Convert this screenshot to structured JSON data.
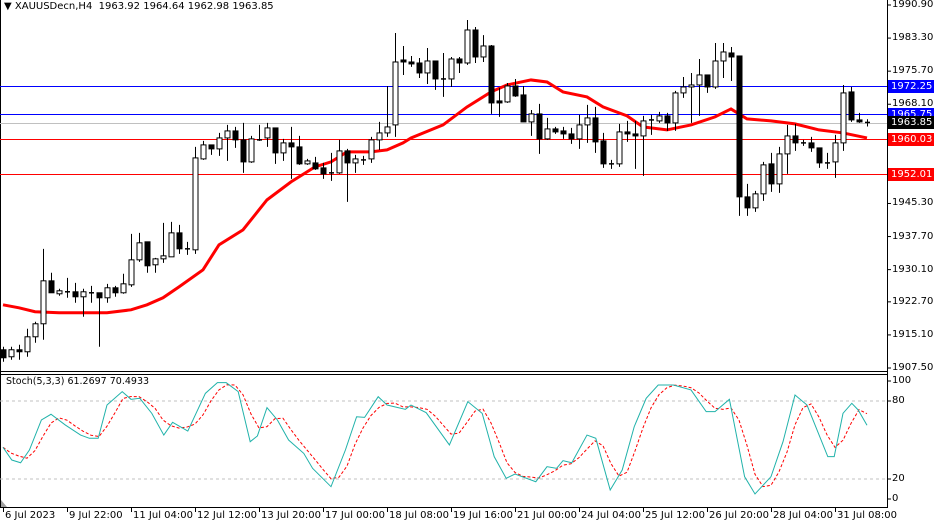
{
  "header": {
    "arrow_icon": "triangle-down-icon",
    "symbol": "XAUUSDecn,H4",
    "open": "1963.92",
    "high": "1964.64",
    "low": "1962.98",
    "close": "1963.85"
  },
  "price_axis": {
    "range": [
      1907.5,
      1990.9
    ],
    "ticks": [
      "1990.90",
      "1983.30",
      "1975.70",
      "1968.10",
      "1945.30",
      "1937.70",
      "1930.10",
      "1922.70",
      "1915.10",
      "1907.50"
    ]
  },
  "levels": [
    {
      "price": 1972.25,
      "label": "1972.25",
      "color": "#0000ff"
    },
    {
      "price": 1965.75,
      "label": "1965.75",
      "color": "#0000ff"
    },
    {
      "price": 1963.85,
      "label": "1963.85",
      "color": "#c0c0c0",
      "box": "#000000"
    },
    {
      "price": 1960.03,
      "label": "1960.03",
      "color": "#ff0000"
    },
    {
      "price": 1952.01,
      "label": "1952.01",
      "color": "#ff0000"
    }
  ],
  "chart_data": {
    "type": "candlestick",
    "candles_ohlc": [
      [
        1911.69,
        1912.38,
        1908.93,
        1909.85
      ],
      [
        1910.08,
        1912.38,
        1909.39,
        1911.69
      ],
      [
        1911.69,
        1912.84,
        1909.39,
        1911.23
      ],
      [
        1911.23,
        1916.51,
        1910.08,
        1914.67
      ],
      [
        1914.67,
        1918.12,
        1913.3,
        1917.66
      ],
      [
        1917.66,
        1934.88,
        1913.99,
        1927.53
      ],
      [
        1927.53,
        1929.37,
        1924.78,
        1924.78
      ],
      [
        1924.55,
        1925.7,
        1924.09,
        1925.24
      ],
      [
        1925.01,
        1928.22,
        1923.63,
        1925.01
      ],
      [
        1925.01,
        1927.07,
        1922.48,
        1923.86
      ],
      [
        1923.86,
        1925.7,
        1919.27,
        1925.01
      ],
      [
        1924.78,
        1926.38,
        1922.48,
        1924.78
      ],
      [
        1924.78,
        1924.78,
        1912.38,
        1923.63
      ],
      [
        1923.63,
        1926.84,
        1922.48,
        1925.93
      ],
      [
        1925.93,
        1926.38,
        1923.86,
        1924.78
      ],
      [
        1924.78,
        1929.14,
        1924.55,
        1926.84
      ],
      [
        1926.61,
        1938.32,
        1926.15,
        1932.35
      ],
      [
        1932.35,
        1938.55,
        1931.89,
        1936.26
      ],
      [
        1936.49,
        1936.49,
        1929.37,
        1930.98
      ],
      [
        1931.21,
        1932.81,
        1929.37,
        1932.58
      ],
      [
        1932.58,
        1940.85,
        1931.66,
        1933.27
      ],
      [
        1933.04,
        1941.08,
        1933.04,
        1938.55
      ],
      [
        1938.55,
        1940.39,
        1933.73,
        1934.88
      ],
      [
        1934.88,
        1936.49,
        1933.5,
        1934.88
      ],
      [
        1934.65,
        1958.3,
        1933.73,
        1955.77
      ],
      [
        1955.54,
        1959.68,
        1955.31,
        1958.76
      ],
      [
        1958.76,
        1958.76,
        1956.46,
        1957.84
      ],
      [
        1957.84,
        1961.51,
        1956.23,
        1960.36
      ],
      [
        1960.36,
        1963.35,
        1955.08,
        1961.97
      ],
      [
        1961.97,
        1962.89,
        1958.07,
        1959.91
      ],
      [
        1959.91,
        1963.81,
        1952.33,
        1954.85
      ],
      [
        1954.85,
        1960.82,
        1954.62,
        1960.14
      ],
      [
        1959.91,
        1963.35,
        1959.68,
        1959.91
      ],
      [
        1960.36,
        1963.81,
        1958.3,
        1962.66
      ],
      [
        1962.66,
        1962.66,
        1954.4,
        1956.92
      ],
      [
        1956.92,
        1960.14,
        1955.08,
        1959.22
      ],
      [
        1959.22,
        1962.89,
        1950.95,
        1958.3
      ],
      [
        1958.3,
        1960.82,
        1954.17,
        1954.4
      ],
      [
        1954.4,
        1955.54,
        1954.17,
        1955.08
      ],
      [
        1954.62,
        1956.0,
        1953.02,
        1953.25
      ],
      [
        1953.48,
        1954.62,
        1950.95,
        1952.1
      ],
      [
        1952.33,
        1956.92,
        1950.49,
        1952.33
      ],
      [
        1952.33,
        1959.91,
        1952.1,
        1957.38
      ],
      [
        1957.38,
        1957.84,
        1945.67,
        1954.62
      ],
      [
        1954.62,
        1956.46,
        1952.33,
        1955.54
      ],
      [
        1955.31,
        1956.23,
        1954.17,
        1955.31
      ],
      [
        1955.54,
        1960.59,
        1954.62,
        1959.91
      ],
      [
        1959.91,
        1964.04,
        1957.61,
        1961.51
      ],
      [
        1961.51,
        1972.3,
        1960.59,
        1962.89
      ],
      [
        1963.35,
        1984.47,
        1960.59,
        1977.81
      ],
      [
        1978.27,
        1981.49,
        1974.83,
        1977.81
      ],
      [
        1977.81,
        1979.19,
        1976.67,
        1977.36
      ],
      [
        1977.58,
        1978.73,
        1974.14,
        1975.29
      ],
      [
        1975.29,
        1981.03,
        1972.76,
        1978.04
      ],
      [
        1978.04,
        1978.04,
        1971.39,
        1973.91
      ],
      [
        1973.91,
        1979.88,
        1969.78,
        1973.91
      ],
      [
        1973.91,
        1978.96,
        1972.07,
        1978.5
      ],
      [
        1978.5,
        1978.96,
        1975.29,
        1977.58
      ],
      [
        1977.58,
        1987.46,
        1977.13,
        1985.16
      ],
      [
        1985.16,
        1985.85,
        1977.58,
        1978.96
      ],
      [
        1978.96,
        1983.98,
        1977.81,
        1981.49
      ],
      [
        1981.49,
        1981.72,
        1965.88,
        1968.4
      ],
      [
        1968.86,
        1971.85,
        1965.19,
        1968.4
      ],
      [
        1968.63,
        1972.99,
        1968.4,
        1972.3
      ],
      [
        1972.3,
        1973.91,
        1969.78,
        1970.01
      ],
      [
        1970.24,
        1972.3,
        1964.04,
        1964.04
      ],
      [
        1964.04,
        1966.79,
        1960.82,
        1965.88
      ],
      [
        1965.88,
        1968.17,
        1956.69,
        1960.14
      ],
      [
        1960.14,
        1964.96,
        1959.91,
        1962.43
      ],
      [
        1962.43,
        1962.89,
        1961.28,
        1961.74
      ],
      [
        1961.97,
        1962.89,
        1960.14,
        1961.28
      ],
      [
        1961.28,
        1962.66,
        1958.99,
        1960.14
      ],
      [
        1960.14,
        1965.65,
        1957.84,
        1963.35
      ],
      [
        1963.35,
        1967.94,
        1959.22,
        1964.96
      ],
      [
        1964.96,
        1967.48,
        1956.92,
        1959.45
      ],
      [
        1959.68,
        1961.51,
        1953.48,
        1954.4
      ],
      [
        1954.4,
        1955.31,
        1953.25,
        1954.4
      ],
      [
        1954.4,
        1963.58,
        1953.71,
        1961.74
      ],
      [
        1961.74,
        1964.27,
        1959.45,
        1961.28
      ],
      [
        1961.28,
        1964.27,
        1953.25,
        1960.82
      ],
      [
        1960.82,
        1965.42,
        1951.64,
        1964.27
      ],
      [
        1964.5,
        1965.65,
        1961.05,
        1964.27
      ],
      [
        1964.27,
        1966.34,
        1963.81,
        1965.42
      ],
      [
        1965.42,
        1966.11,
        1961.97,
        1963.81
      ],
      [
        1963.81,
        1971.16,
        1961.97,
        1970.7
      ],
      [
        1970.7,
        1974.37,
        1969.55,
        1972.07
      ],
      [
        1972.07,
        1975.29,
        1963.81,
        1972.53
      ],
      [
        1972.53,
        1978.5,
        1965.42,
        1974.83
      ],
      [
        1974.83,
        1974.83,
        1970.7,
        1972.07
      ],
      [
        1972.07,
        1982.18,
        1971.62,
        1978.04
      ],
      [
        1978.04,
        1982.18,
        1974.14,
        1980.11
      ],
      [
        1979.88,
        1981.26,
        1973.45,
        1978.96
      ],
      [
        1979.19,
        1979.19,
        1942.45,
        1946.82
      ],
      [
        1946.82,
        1949.8,
        1942.45,
        1944.29
      ],
      [
        1944.29,
        1948.2,
        1943.37,
        1947.51
      ],
      [
        1947.51,
        1954.85,
        1945.9,
        1954.17
      ],
      [
        1954.4,
        1956.92,
        1947.97,
        1949.8
      ],
      [
        1949.8,
        1958.3,
        1947.74,
        1956.69
      ],
      [
        1956.69,
        1963.35,
        1952.1,
        1960.82
      ],
      [
        1960.82,
        1963.58,
        1957.38,
        1959.22
      ],
      [
        1959.22,
        1959.91,
        1958.53,
        1959.22
      ],
      [
        1959.22,
        1960.59,
        1957.15,
        1958.07
      ],
      [
        1958.07,
        1958.07,
        1953.48,
        1954.62
      ],
      [
        1954.62,
        1956.92,
        1953.25,
        1954.62
      ],
      [
        1954.85,
        1961.05,
        1951.18,
        1959.22
      ],
      [
        1959.22,
        1972.53,
        1957.38,
        1970.7
      ],
      [
        1970.93,
        1972.07,
        1964.04,
        1964.5
      ],
      [
        1964.5,
        1966.11,
        1963.81,
        1964.04
      ],
      [
        1963.92,
        1964.64,
        1962.98,
        1963.85
      ]
    ],
    "bull_color": "#ffffff",
    "bear_color": "#000000",
    "moving_average": {
      "color": "#ff0000",
      "points_bar_value": [
        [
          0,
          1922.02
        ],
        [
          2,
          1921.33
        ],
        [
          4,
          1920.42
        ],
        [
          7,
          1920.19
        ],
        [
          11,
          1920.19
        ],
        [
          13,
          1920.19
        ],
        [
          16,
          1920.87
        ],
        [
          18,
          1922.02
        ],
        [
          20,
          1923.63
        ],
        [
          22,
          1926.15
        ],
        [
          25,
          1930.06
        ],
        [
          27,
          1935.8
        ],
        [
          30,
          1939.24
        ],
        [
          32,
          1943.83
        ],
        [
          33,
          1946.13
        ],
        [
          36,
          1950.26
        ],
        [
          39,
          1953.71
        ],
        [
          41,
          1954.85
        ],
        [
          43,
          1957.15
        ],
        [
          46,
          1957.15
        ],
        [
          48,
          1957.61
        ],
        [
          50,
          1959.22
        ],
        [
          51,
          1960.36
        ],
        [
          55,
          1963.35
        ],
        [
          58,
          1967.48
        ],
        [
          61,
          1970.93
        ],
        [
          63,
          1972.53
        ],
        [
          66,
          1973.68
        ],
        [
          68,
          1973.22
        ],
        [
          70,
          1970.93
        ],
        [
          73,
          1969.78
        ],
        [
          75,
          1967.48
        ],
        [
          78,
          1965.42
        ],
        [
          80,
          1962.89
        ],
        [
          83,
          1962.2
        ],
        [
          86,
          1963.35
        ],
        [
          89,
          1965.19
        ],
        [
          91,
          1967.02
        ],
        [
          93,
          1964.73
        ],
        [
          96,
          1964.27
        ],
        [
          99,
          1963.58
        ],
        [
          102,
          1962.2
        ],
        [
          105,
          1961.51
        ],
        [
          108,
          1960.36
        ]
      ]
    },
    "time_labels": [
      "6 Jul 2023",
      "9 Jul 22:00",
      "11 Jul 04:00",
      "12 Jul 12:00",
      "13 Jul 20:00",
      "17 Jul 00:00",
      "18 Jul 08:00",
      "19 Jul 16:00",
      "21 Jul 00:00",
      "24 Jul 04:00",
      "25 Jul 12:00",
      "26 Jul 20:00",
      "28 Jul 04:00",
      "31 Jul 08:00"
    ],
    "time_label_every_bars": 8
  },
  "stochastic": {
    "name": "Stoch(5,3,3)",
    "main_value": "61.2697",
    "signal_value": "70.4933",
    "range": [
      0,
      100
    ],
    "levels": [
      80,
      20
    ],
    "axis_ticks": [
      "100",
      "80",
      "20",
      "0"
    ],
    "main_color": "#20b2aa",
    "signal_color": "#ff0000",
    "main_points_bar_value": [
      [
        0,
        44.4
      ],
      [
        1.1,
        34.6
      ],
      [
        2.2,
        32.5
      ],
      [
        3.3,
        42.3
      ],
      [
        4.8,
        65.4
      ],
      [
        6.0,
        69.8
      ],
      [
        7.8,
        61.5
      ],
      [
        9.7,
        53.8
      ],
      [
        10.8,
        51.3
      ],
      [
        11.9,
        51.3
      ],
      [
        13.0,
        76.9
      ],
      [
        14.9,
        87.2
      ],
      [
        16.0,
        81.3
      ],
      [
        17.1,
        82.1
      ],
      [
        18.6,
        70.5
      ],
      [
        20.1,
        53.8
      ],
      [
        21.2,
        63.6
      ],
      [
        23.1,
        56.9
      ],
      [
        25.3,
        85.9
      ],
      [
        26.8,
        94.1
      ],
      [
        27.9,
        94.1
      ],
      [
        29.4,
        87.2
      ],
      [
        30.9,
        48.7
      ],
      [
        31.8,
        53.1
      ],
      [
        33.0,
        74.9
      ],
      [
        34.3,
        65.4
      ],
      [
        35.7,
        50.0
      ],
      [
        37.6,
        39.7
      ],
      [
        38.7,
        28.2
      ],
      [
        41.0,
        14.1
      ],
      [
        42.8,
        42.3
      ],
      [
        44.2,
        67.9
      ],
      [
        45.2,
        67.4
      ],
      [
        46.9,
        83.3
      ],
      [
        48.0,
        76.9
      ],
      [
        50.3,
        73.6
      ],
      [
        51.0,
        76.9
      ],
      [
        52.9,
        71.0
      ],
      [
        55.8,
        46.2
      ],
      [
        58.1,
        79.5
      ],
      [
        59.9,
        70.5
      ],
      [
        61.4,
        37.2
      ],
      [
        62.9,
        20.5
      ],
      [
        64.0,
        23.8
      ],
      [
        66.6,
        17.9
      ],
      [
        68.0,
        29.5
      ],
      [
        69.2,
        28.2
      ],
      [
        70.0,
        34.1
      ],
      [
        71.1,
        32.5
      ],
      [
        73.0,
        53.8
      ],
      [
        74.1,
        51.3
      ],
      [
        75.9,
        11.5
      ],
      [
        77.4,
        26.9
      ],
      [
        78.9,
        60.2
      ],
      [
        80.4,
        82.1
      ],
      [
        81.9,
        92.3
      ],
      [
        83.8,
        92.3
      ],
      [
        86.0,
        88.5
      ],
      [
        87.9,
        71.8
      ],
      [
        89.0,
        71.8
      ],
      [
        90.8,
        81.3
      ],
      [
        92.7,
        21.8
      ],
      [
        94.0,
        8.5
      ],
      [
        96.0,
        21.8
      ],
      [
        97.5,
        48.7
      ],
      [
        99.0,
        84.6
      ],
      [
        100.5,
        76.9
      ],
      [
        103.1,
        37.2
      ],
      [
        103.9,
        37.2
      ],
      [
        105.0,
        70.5
      ],
      [
        106.1,
        78.2
      ],
      [
        106.9,
        73.1
      ],
      [
        108.0,
        61.3
      ]
    ]
  }
}
